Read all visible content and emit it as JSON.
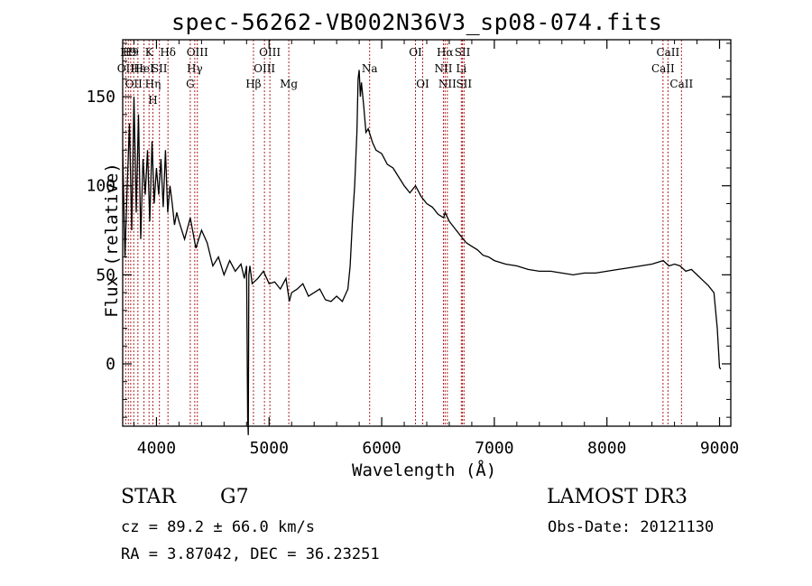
{
  "chart_data": {
    "type": "line",
    "title": "spec-56262-VB002N36V3_sp08-074.fits",
    "xlabel": "Wavelength (Å)",
    "ylabel": "Flux (relative)",
    "xlim": [
      3700,
      9100
    ],
    "ylim": [
      -35,
      182
    ],
    "xticks": [
      4000,
      5000,
      6000,
      7000,
      8000,
      9000
    ],
    "yticks": [
      0,
      50,
      100,
      150
    ],
    "grid": false,
    "series": [
      {
        "name": "flux",
        "color": "#000000",
        "x": [
          3700,
          3720,
          3740,
          3760,
          3780,
          3800,
          3820,
          3840,
          3860,
          3880,
          3900,
          3920,
          3940,
          3960,
          3980,
          4000,
          4020,
          4040,
          4060,
          4080,
          4100,
          4120,
          4140,
          4160,
          4180,
          4200,
          4250,
          4300,
          4350,
          4400,
          4450,
          4500,
          4550,
          4600,
          4650,
          4700,
          4750,
          4780,
          4800,
          4810,
          4815,
          4820,
          4830,
          4850,
          4900,
          4950,
          5000,
          5050,
          5100,
          5150,
          5180,
          5200,
          5250,
          5300,
          5350,
          5400,
          5450,
          5500,
          5550,
          5600,
          5650,
          5700,
          5720,
          5740,
          5760,
          5780,
          5790,
          5800,
          5810,
          5820,
          5840,
          5860,
          5880,
          5900,
          5920,
          5950,
          6000,
          6050,
          6100,
          6150,
          6200,
          6250,
          6300,
          6350,
          6400,
          6450,
          6500,
          6550,
          6563,
          6600,
          6650,
          6700,
          6750,
          6800,
          6850,
          6900,
          6950,
          7000,
          7100,
          7200,
          7300,
          7400,
          7500,
          7600,
          7700,
          7800,
          7900,
          8000,
          8100,
          8200,
          8300,
          8400,
          8500,
          8550,
          8600,
          8650,
          8700,
          8750,
          8800,
          8850,
          8900,
          8950,
          8980,
          9000,
          9010
        ],
        "y": [
          120,
          60,
          100,
          135,
          75,
          150,
          85,
          140,
          70,
          115,
          95,
          120,
          80,
          125,
          90,
          110,
          95,
          115,
          88,
          120,
          85,
          100,
          90,
          78,
          85,
          80,
          70,
          82,
          65,
          75,
          68,
          55,
          60,
          50,
          58,
          52,
          56,
          48,
          55,
          -30,
          -40,
          50,
          55,
          45,
          48,
          52,
          45,
          46,
          42,
          48,
          35,
          40,
          42,
          45,
          38,
          40,
          42,
          36,
          35,
          38,
          35,
          42,
          55,
          80,
          100,
          130,
          160,
          165,
          150,
          158,
          145,
          130,
          132,
          128,
          124,
          120,
          118,
          112,
          110,
          105,
          100,
          96,
          100,
          94,
          90,
          88,
          84,
          82,
          85,
          80,
          76,
          72,
          68,
          66,
          64,
          61,
          60,
          58,
          56,
          55,
          53,
          52,
          52,
          51,
          50,
          51,
          51,
          52,
          53,
          54,
          55,
          56,
          58,
          55,
          56,
          55,
          52,
          53,
          50,
          47,
          44,
          40,
          20,
          -2,
          -3
        ]
      }
    ],
    "lines": [
      {
        "lambda": 3727,
        "labels": [
          "",
          "OII"
        ]
      },
      {
        "lambda": 3750,
        "labels": [
          "H9"
        ]
      },
      {
        "lambda": 3771,
        "labels": [
          "H9"
        ]
      },
      {
        "lambda": 3798,
        "labels": [
          "",
          "",
          "OII"
        ]
      },
      {
        "lambda": 3835,
        "labels": [
          "",
          "Hε"
        ]
      },
      {
        "lambda": 3889,
        "labels": [
          "",
          "HeI"
        ]
      },
      {
        "lambda": 3934,
        "labels": [
          "K"
        ]
      },
      {
        "lambda": 3968,
        "labels": [
          "",
          "",
          "Hη",
          "H"
        ]
      },
      {
        "lambda": 4026,
        "labels": [
          "",
          "SII"
        ]
      },
      {
        "lambda": 4102,
        "labels": [
          "Hδ"
        ]
      },
      {
        "lambda": 4300,
        "labels": [
          "",
          "",
          "G"
        ]
      },
      {
        "lambda": 4340,
        "labels": [
          "",
          "Hγ"
        ]
      },
      {
        "lambda": 4363,
        "labels": [
          "OIII"
        ]
      },
      {
        "lambda": 4861,
        "labels": [
          "",
          "",
          "Hβ"
        ]
      },
      {
        "lambda": 4959,
        "labels": [
          "",
          "OIII"
        ]
      },
      {
        "lambda": 5007,
        "labels": [
          "OIII"
        ]
      },
      {
        "lambda": 5175,
        "labels": [
          "",
          "",
          "Mg"
        ]
      },
      {
        "lambda": 5893,
        "labels": [
          "",
          "Na"
        ]
      },
      {
        "lambda": 6300,
        "labels": [
          "OI"
        ]
      },
      {
        "lambda": 6364,
        "labels": [
          "",
          "",
          "OI"
        ]
      },
      {
        "lambda": 6548,
        "labels": [
          "",
          "NII"
        ]
      },
      {
        "lambda": 6563,
        "labels": [
          "Hα"
        ]
      },
      {
        "lambda": 6583,
        "labels": [
          "",
          "",
          "NII"
        ]
      },
      {
        "lambda": 6707,
        "labels": [
          "",
          "Li"
        ]
      },
      {
        "lambda": 6717,
        "labels": [
          "SII"
        ]
      },
      {
        "lambda": 6731,
        "labels": [
          "",
          "",
          "SII"
        ]
      },
      {
        "lambda": 8498,
        "labels": [
          "",
          "CaII"
        ]
      },
      {
        "lambda": 8542,
        "labels": [
          "CaII"
        ]
      },
      {
        "lambda": 8662,
        "labels": [
          "",
          "",
          "CaII"
        ]
      }
    ]
  },
  "info": {
    "class_label": "STAR",
    "subclass": "G7",
    "survey": "LAMOST DR3",
    "cz": "cz = 89.2 ± 66.0 km/s",
    "obs_date": "Obs-Date: 20121130",
    "radec": "RA =   3.87042, DEC =  36.23251"
  },
  "colors": {
    "spectrum": "#000000",
    "line_marker": "#b02020",
    "axes": "#000000"
  }
}
